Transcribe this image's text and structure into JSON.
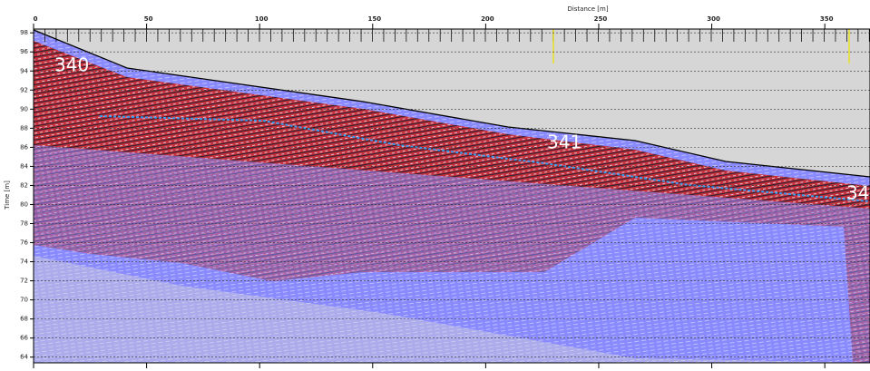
{
  "chart_data": {
    "type": "radargram",
    "x_label": "Distance [m]",
    "y_label": "Time [m]",
    "xlim": [
      0,
      370
    ],
    "xticks": [
      0,
      50,
      100,
      150,
      200,
      250,
      300,
      350
    ],
    "ylim": [
      63.4,
      98.4
    ],
    "yticks": [
      64,
      66,
      68,
      70,
      72,
      74,
      76,
      78,
      80,
      82,
      84,
      86,
      88,
      90,
      92,
      94,
      96,
      98
    ],
    "grid": true,
    "annotations": [
      "340",
      "341",
      "34"
    ]
  }
}
